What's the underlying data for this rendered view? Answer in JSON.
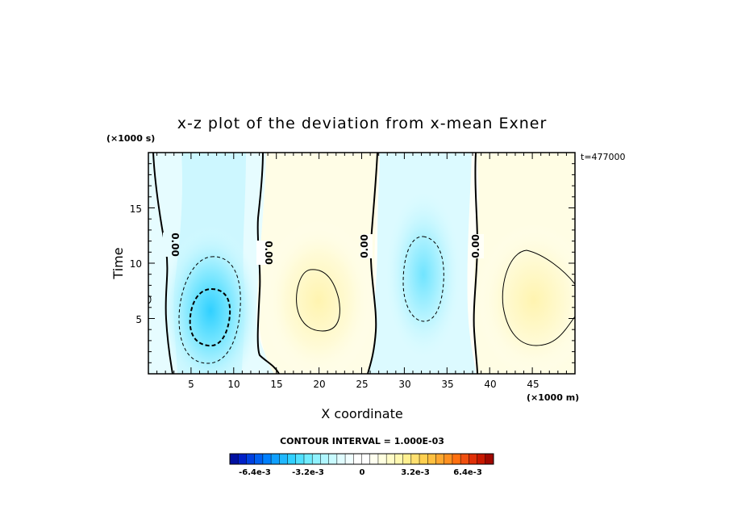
{
  "chart_data": {
    "type": "heatmap",
    "title": "x-z plot of the deviation from x-mean Exner",
    "xlabel": "X coordinate",
    "ylabel": "Time",
    "x_unit": "(×1000 m)",
    "y_unit": "(×1000 s)",
    "time_stamp": "t=477000",
    "xlim": [
      0,
      50
    ],
    "ylim": [
      0,
      20
    ],
    "x_ticks": [
      "5",
      "10",
      "15",
      "20",
      "25",
      "30",
      "35",
      "40",
      "45"
    ],
    "y_ticks": [
      "5",
      "10",
      "15"
    ],
    "contour_interval_text": "CONTOUR INTERVAL = 1.000E-03",
    "contour_labels": [
      "0.00",
      "0.00",
      "0.00",
      "0.00"
    ],
    "colorbar": {
      "vmin": -0.008,
      "vmax": 0.008,
      "tick_labels": [
        "-6.4e-3",
        "-3.2e-3",
        "0",
        "3.2e-3",
        "6.4e-3"
      ],
      "colors": [
        "#0010a0",
        "#0020c8",
        "#0040e0",
        "#0060f0",
        "#0080ff",
        "#10a0ff",
        "#20b8ff",
        "#30d0ff",
        "#50e0ff",
        "#70ecff",
        "#90f2ff",
        "#b0f6ff",
        "#c8faff",
        "#e0fcff",
        "#f0feff",
        "#ffffff",
        "#ffffff",
        "#fffff0",
        "#ffffe0",
        "#fffcc8",
        "#fff8b0",
        "#fff090",
        "#ffe070",
        "#ffd050",
        "#ffc040",
        "#ffa830",
        "#ff9020",
        "#ff7010",
        "#f05010",
        "#e03008",
        "#c81800",
        "#a00800"
      ]
    },
    "anomalies": [
      {
        "sign": "negative",
        "x": 7.5,
        "y": 5.2,
        "peak": -0.0042
      },
      {
        "sign": "positive",
        "x": 20.0,
        "y": 6.8,
        "peak": 0.0014
      },
      {
        "sign": "negative",
        "x": 32.5,
        "y": 8.5,
        "peak": -0.0021
      },
      {
        "sign": "positive",
        "x": 46.0,
        "y": 6.8,
        "peak": 0.0017
      }
    ]
  }
}
